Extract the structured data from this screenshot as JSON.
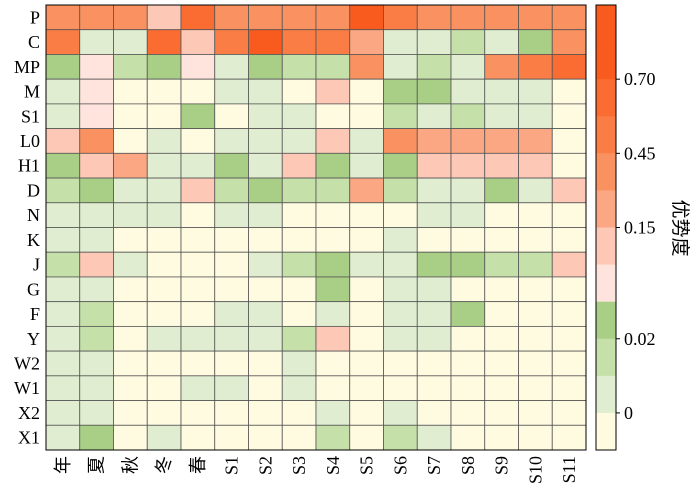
{
  "chart_data": {
    "type": "heatmap",
    "title": "",
    "xlabel": "",
    "ylabel": "",
    "x_categories": [
      "年",
      "夏",
      "秋",
      "冬",
      "春",
      "S1",
      "S2",
      "S3",
      "S4",
      "S5",
      "S6",
      "S7",
      "S8",
      "S9",
      "S10",
      "S11"
    ],
    "y_categories": [
      "P",
      "C",
      "MP",
      "M",
      "S1",
      "L0",
      "H1",
      "D",
      "N",
      "K",
      "J",
      "G",
      "F",
      "Y",
      "W2",
      "W1",
      "X2",
      "X1"
    ],
    "values": [
      [
        0.4,
        0.4,
        0.4,
        0.1,
        0.6,
        0.3,
        0.3,
        0.4,
        0.4,
        0.75,
        0.5,
        0.4,
        0.4,
        0.3,
        0.3,
        0.3
      ],
      [
        0.5,
        0.0,
        0.0,
        0.6,
        0.1,
        0.45,
        0.7,
        0.5,
        0.45,
        0.15,
        0.0,
        0.0,
        0.01,
        0.0,
        0.02,
        0.3
      ],
      [
        0.02,
        0.05,
        0.01,
        0.02,
        0.05,
        0.0,
        0.02,
        0.01,
        0.01,
        0.3,
        0.0,
        0.01,
        0.0,
        0.4,
        0.45,
        0.6
      ],
      [
        0.0,
        0.05,
        -0.05,
        -0.05,
        -0.05,
        0.0,
        0.0,
        -0.05,
        0.1,
        -0.05,
        0.02,
        0.02,
        0.0,
        0.0,
        0.0,
        -0.05
      ],
      [
        0.0,
        0.05,
        -0.05,
        -0.05,
        0.02,
        -0.05,
        0.0,
        0.0,
        -0.05,
        -0.05,
        0.01,
        0.0,
        0.01,
        0.0,
        0.0,
        -0.05
      ],
      [
        0.1,
        0.35,
        -0.05,
        0.0,
        -0.05,
        0.0,
        0.0,
        0.0,
        0.1,
        0.0,
        0.3,
        0.15,
        0.15,
        0.2,
        0.15,
        -0.05
      ],
      [
        0.02,
        0.1,
        0.15,
        0.0,
        0.0,
        0.02,
        0.0,
        0.1,
        0.02,
        0.0,
        0.02,
        0.1,
        0.1,
        0.1,
        0.1,
        -0.05
      ],
      [
        0.01,
        0.02,
        0.0,
        0.0,
        0.1,
        0.01,
        0.02,
        0.01,
        0.01,
        0.15,
        0.01,
        0.0,
        0.0,
        0.02,
        0.0,
        0.1
      ],
      [
        0.0,
        0.0,
        0.0,
        0.0,
        -0.05,
        0.0,
        0.0,
        -0.05,
        -0.05,
        -0.05,
        -0.05,
        0.0,
        0.0,
        -0.05,
        -0.05,
        -0.05
      ],
      [
        0.0,
        0.0,
        -0.05,
        -0.05,
        -0.05,
        -0.05,
        -0.05,
        -0.05,
        -0.05,
        -0.05,
        0.0,
        -0.05,
        -0.05,
        -0.05,
        -0.05,
        -0.05
      ],
      [
        0.01,
        0.1,
        0.0,
        -0.05,
        -0.05,
        -0.05,
        0.0,
        0.01,
        0.02,
        0.0,
        0.0,
        0.02,
        0.02,
        0.01,
        0.01,
        0.1
      ],
      [
        0.0,
        0.0,
        -0.05,
        -0.05,
        -0.05,
        -0.05,
        -0.05,
        -0.05,
        0.02,
        -0.05,
        0.0,
        0.0,
        -0.05,
        -0.05,
        -0.05,
        -0.05
      ],
      [
        0.0,
        0.01,
        -0.05,
        -0.05,
        -0.05,
        0.0,
        0.0,
        -0.05,
        0.0,
        -0.05,
        0.0,
        0.0,
        0.02,
        -0.05,
        -0.05,
        -0.05
      ],
      [
        0.0,
        0.01,
        -0.05,
        0.0,
        0.0,
        0.0,
        0.0,
        0.01,
        0.1,
        -0.05,
        0.0,
        0.0,
        -0.05,
        -0.05,
        -0.05,
        -0.05
      ],
      [
        0.0,
        0.0,
        -0.05,
        -0.05,
        -0.05,
        -0.05,
        -0.05,
        0.0,
        -0.05,
        -0.05,
        -0.05,
        -0.05,
        -0.05,
        -0.05,
        -0.05,
        -0.05
      ],
      [
        0.0,
        0.0,
        -0.05,
        -0.05,
        0.0,
        0.0,
        -0.05,
        0.0,
        -0.05,
        -0.05,
        -0.05,
        -0.05,
        -0.05,
        -0.05,
        -0.05,
        -0.05
      ],
      [
        0.0,
        0.0,
        -0.05,
        -0.05,
        -0.05,
        -0.05,
        -0.05,
        -0.05,
        0.0,
        -0.05,
        0.0,
        -0.05,
        -0.05,
        -0.05,
        -0.05,
        -0.05
      ],
      [
        0.0,
        0.02,
        -0.05,
        0.0,
        -0.05,
        -0.05,
        -0.05,
        -0.05,
        0.01,
        -0.05,
        0.01,
        0.0,
        -0.05,
        -0.05,
        -0.05,
        -0.05
      ]
    ],
    "colorbar": {
      "title": "优势度",
      "tick_labels": [
        "0.70",
        "0.45",
        "0.15",
        "0.02",
        "0"
      ],
      "bins": [
        {
          "min": 0.75,
          "max": 0.8,
          "color": "#f95a1d"
        },
        {
          "min": 0.7,
          "max": 0.75,
          "color": "#f95a1d"
        },
        {
          "min": 0.6,
          "max": 0.7,
          "color": "#fa6c31"
        },
        {
          "min": 0.45,
          "max": 0.6,
          "color": "#fa7d45"
        },
        {
          "min": 0.3,
          "max": 0.45,
          "color": "#fa9160"
        },
        {
          "min": 0.15,
          "max": 0.3,
          "color": "#fba784"
        },
        {
          "min": 0.1,
          "max": 0.15,
          "color": "#fdc8b5"
        },
        {
          "min": 0.05,
          "max": 0.1,
          "color": "#fee4dc"
        },
        {
          "min": 0.02,
          "max": 0.05,
          "color": "#a9cf86"
        },
        {
          "min": 0.01,
          "max": 0.02,
          "color": "#c6e0a9"
        },
        {
          "min": 0.0,
          "max": 0.01,
          "color": "#e0edd0"
        },
        {
          "min": -0.1,
          "max": 0.0,
          "color": "#fffbe0"
        }
      ]
    },
    "grid": true
  }
}
